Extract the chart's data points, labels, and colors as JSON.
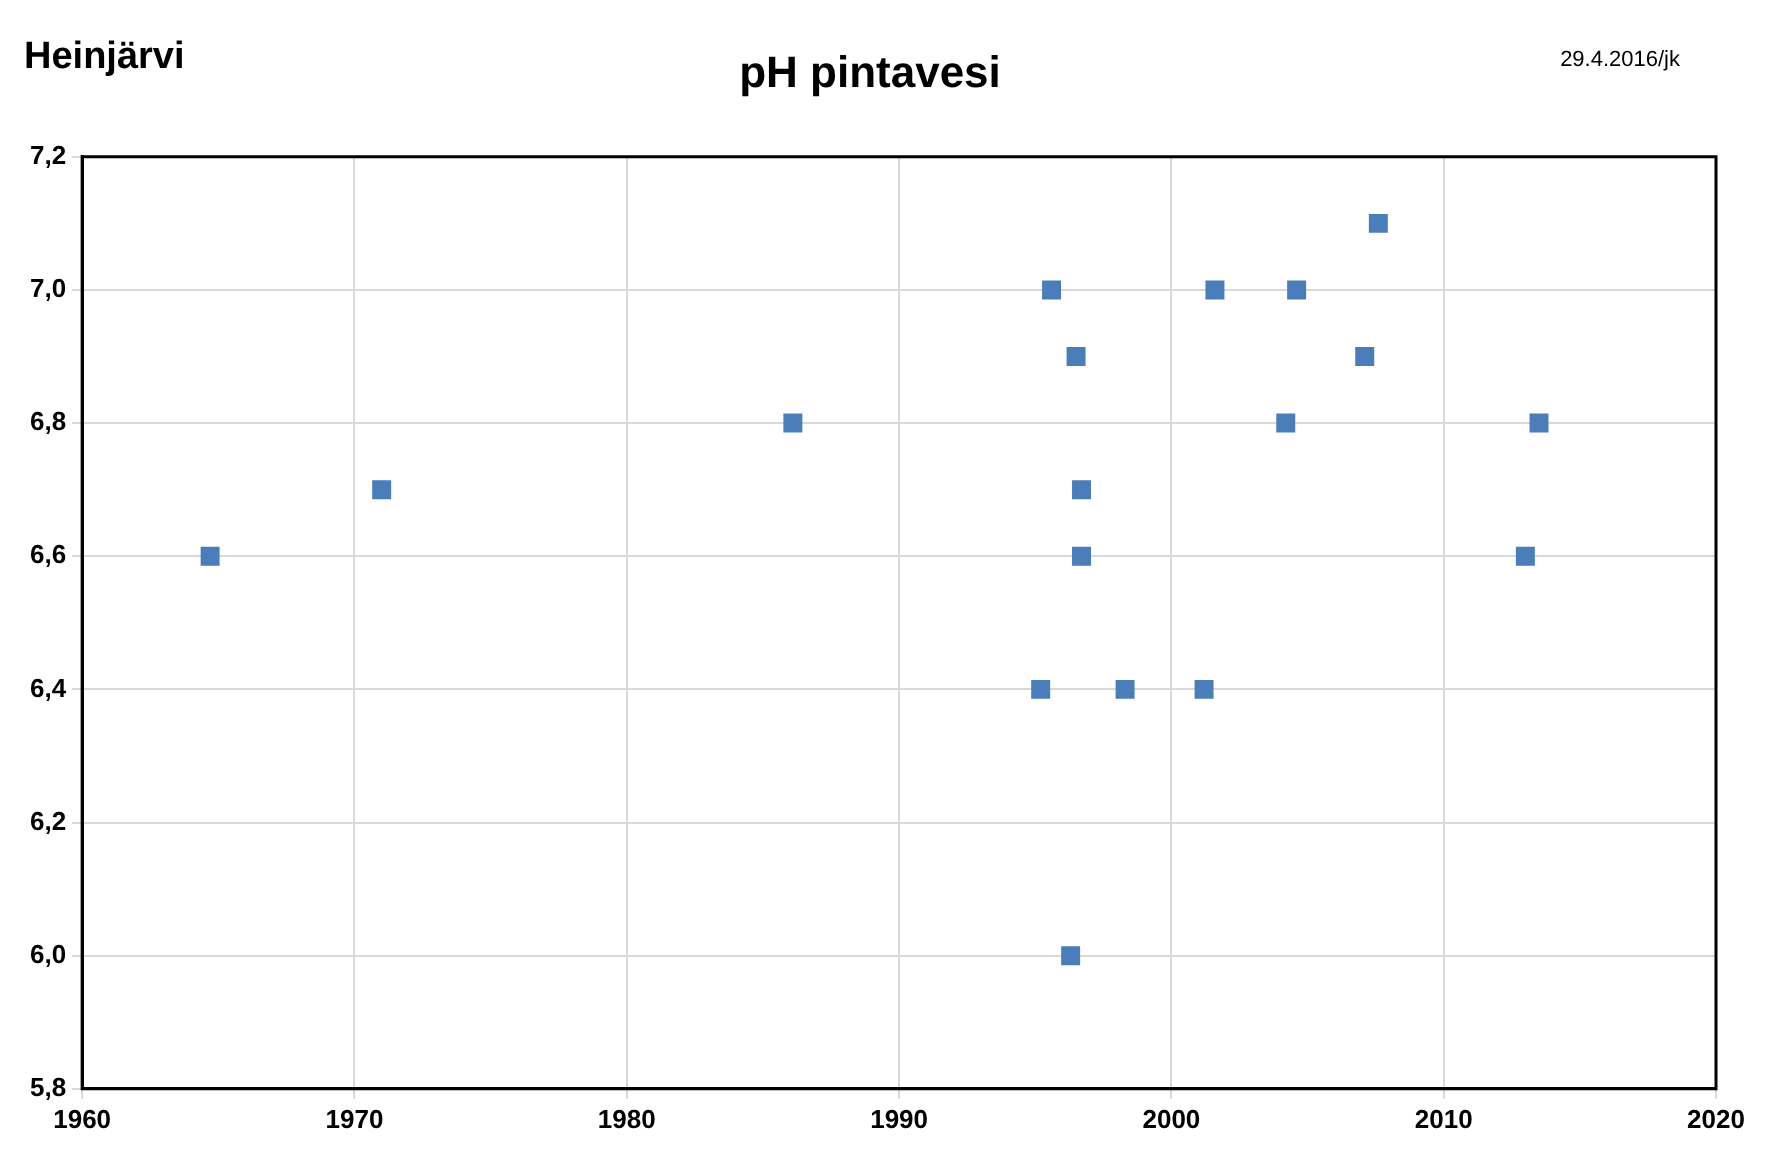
{
  "chart_data": {
    "type": "scatter",
    "title": "pH pintavesi",
    "annotations": [
      "Heinjärvi",
      "29.4.2016/jk"
    ],
    "x": [
      1964.7,
      1971.0,
      1986.1,
      1995.6,
      1995.2,
      1996.5,
      1996.7,
      1996.7,
      1996.3,
      1998.3,
      2001.6,
      2001.2,
      2004.6,
      2004.2,
      2007.6,
      2007.1,
      2013.0,
      2013.5
    ],
    "values": [
      6.6,
      6.7,
      6.8,
      7.0,
      6.4,
      6.9,
      6.7,
      6.6,
      6.0,
      6.4,
      7.0,
      6.4,
      7.0,
      6.8,
      7.1,
      6.9,
      6.6,
      6.8
    ],
    "color": "#4a7ebb",
    "marker": "square",
    "grid": true,
    "legend": false,
    "xlim": [
      1960,
      2020
    ],
    "xticks": [
      1960,
      1970,
      1980,
      1990,
      2000,
      2010,
      2020
    ],
    "ylim": [
      5.8,
      7.2
    ],
    "yticks": [
      {
        "value": 5.8,
        "label": "5,8"
      },
      {
        "value": 6.0,
        "label": "6,0"
      },
      {
        "value": 6.2,
        "label": "6,2"
      },
      {
        "value": 6.4,
        "label": "6,4"
      },
      {
        "value": 6.6,
        "label": "6,6"
      },
      {
        "value": 6.8,
        "label": "6,8"
      },
      {
        "value": 7.0,
        "label": "7,0"
      },
      {
        "value": 7.2,
        "label": "7,2"
      }
    ]
  }
}
